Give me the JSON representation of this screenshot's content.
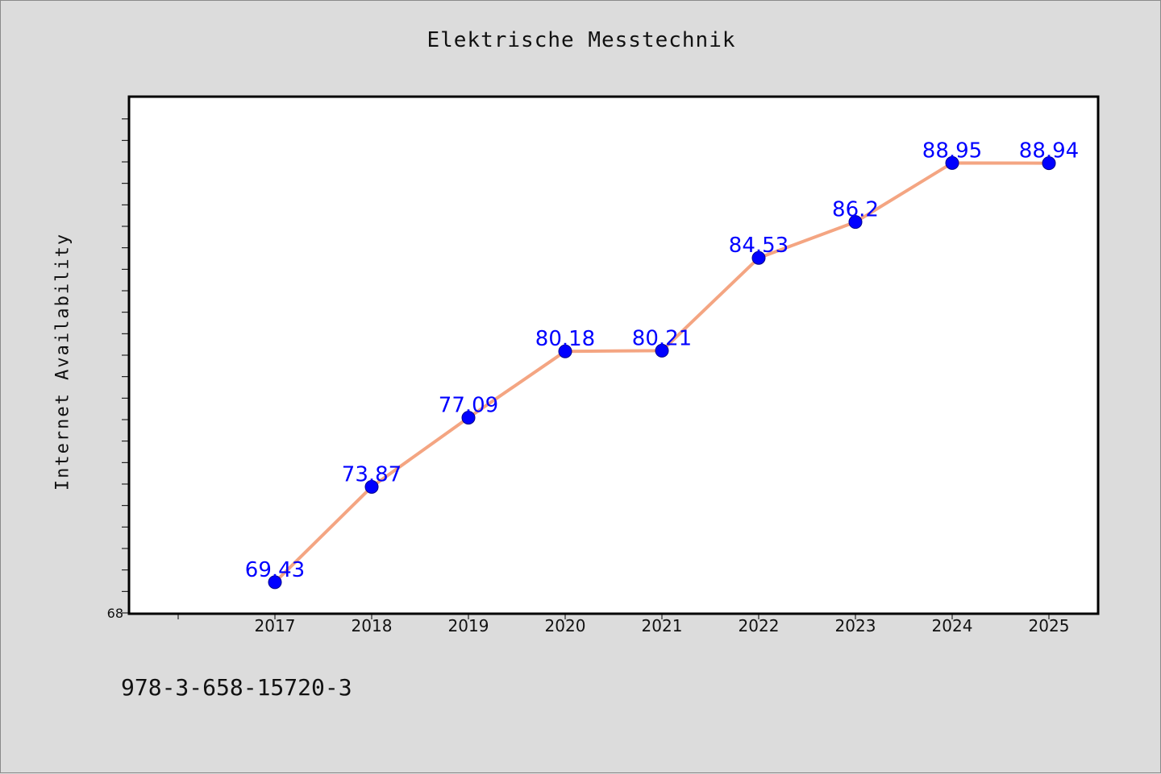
{
  "title": "Elektrische Messtechnik",
  "footer_text": "978-3-658-15720-3",
  "colors": {
    "background": "#dcdcdc",
    "plot_background": "#ffffff",
    "line": "#f4a582",
    "marker": "#0000ff",
    "data_label": "#0000ff"
  },
  "chart_data": {
    "type": "line",
    "title": "Elektrische Messtechnik",
    "xlabel": "",
    "ylabel": "Internet Availability",
    "categories": [
      "2017",
      "2018",
      "2019",
      "2020",
      "2021",
      "2022",
      "2023",
      "2024",
      "2025"
    ],
    "series": [
      {
        "values": [
          69.43,
          73.87,
          77.09,
          80.18,
          80.21,
          84.53,
          86.2,
          88.95,
          88.94
        ],
        "labels": [
          "69.43",
          "73.87",
          "77.09",
          "80.18",
          "80.21",
          "84.53",
          "86.2",
          "88.95",
          "88.94"
        ]
      }
    ],
    "ylim": [
      68,
      92
    ],
    "ytick_labels": [
      "68"
    ],
    "grid": false,
    "legend": "none"
  }
}
